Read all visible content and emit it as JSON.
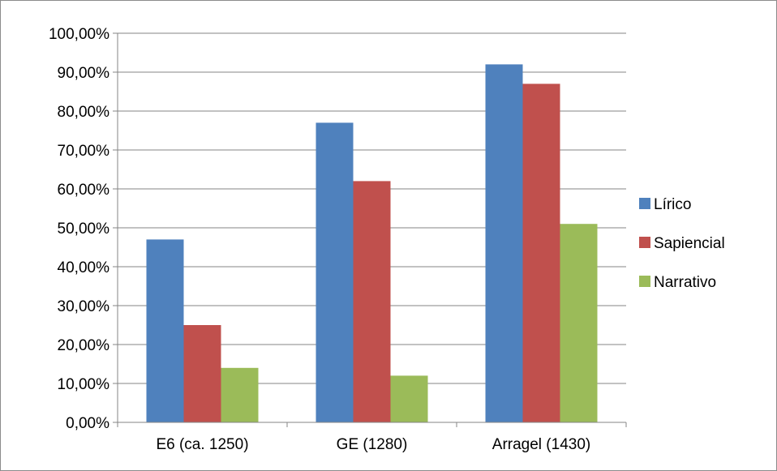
{
  "chart_data": {
    "type": "bar",
    "title": "",
    "xlabel": "",
    "ylabel": "",
    "categories": [
      "E6 (ca. 1250)",
      "GE (1280)",
      "Arragel (1430)"
    ],
    "series": [
      {
        "name": "Lírico",
        "color": "#4f81bd",
        "values": [
          47,
          77,
          92
        ]
      },
      {
        "name": "Sapiencial",
        "color": "#c0504d",
        "values": [
          25,
          62,
          87
        ]
      },
      {
        "name": "Narrativo",
        "color": "#9bbb59",
        "values": [
          14,
          12,
          51
        ]
      }
    ],
    "ylim": [
      0,
      100
    ],
    "yticks": [
      "0,00%",
      "10,00%",
      "20,00%",
      "30,00%",
      "40,00%",
      "50,00%",
      "60,00%",
      "70,00%",
      "80,00%",
      "90,00%",
      "100,00%"
    ],
    "grid": true,
    "legend_position": "right",
    "colors": {
      "gridline": "#868686",
      "axis": "#868686"
    }
  }
}
